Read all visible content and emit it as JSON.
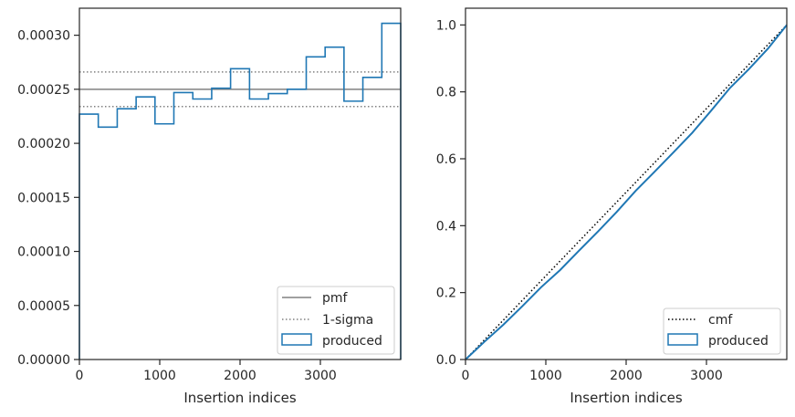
{
  "chart_data": [
    {
      "type": "line",
      "xlabel": "Insertion indices",
      "ylabel": "",
      "xlim": [
        0,
        4000
      ],
      "ylim": [
        0,
        0.000325
      ],
      "xticks": [
        0,
        1000,
        2000,
        3000
      ],
      "xtick_labels": [
        "0",
        "1000",
        "2000",
        "3000"
      ],
      "yticks": [
        0,
        5e-05,
        0.0001,
        0.00015,
        0.0002,
        0.00025,
        0.0003
      ],
      "ytick_labels": [
        "0.00000",
        "0.00005",
        "0.00010",
        "0.00015",
        "0.00020",
        "0.00025",
        "0.00030"
      ],
      "pmf": 0.00025,
      "sigma_lower": 0.000234,
      "sigma_upper": 0.000266,
      "histogram": {
        "bin_edges": [
          0,
          235,
          471,
          706,
          941,
          1176,
          1412,
          1647,
          1882,
          2118,
          2353,
          2588,
          2824,
          3059,
          3294,
          3529,
          3765,
          4000
        ],
        "values": [
          0.000227,
          0.000215,
          0.000232,
          0.000243,
          0.000218,
          0.000247,
          0.000241,
          0.000251,
          0.000269,
          0.000241,
          0.000246,
          0.00025,
          0.00028,
          0.000289,
          0.000239,
          0.000261,
          0.000311
        ]
      },
      "legend": {
        "position": "lower right",
        "entries": [
          {
            "label": "pmf",
            "color": "#808080",
            "style": "solid"
          },
          {
            "label": "1-sigma",
            "color": "#808080",
            "style": "dotted"
          },
          {
            "label": "produced",
            "color": "#1f77b4",
            "style": "step"
          }
        ]
      },
      "grid": false
    },
    {
      "type": "line",
      "xlabel": "Insertion indices",
      "ylabel": "",
      "xlim": [
        0,
        4000
      ],
      "ylim": [
        0,
        1.05
      ],
      "xticks": [
        0,
        1000,
        2000,
        3000
      ],
      "xtick_labels": [
        "0",
        "1000",
        "2000",
        "3000"
      ],
      "yticks": [
        0,
        0.2,
        0.4,
        0.6,
        0.8,
        1.0
      ],
      "ytick_labels": [
        "0.0",
        "0.2",
        "0.4",
        "0.6",
        "0.8",
        "1.0"
      ],
      "cmf": {
        "x": [
          0,
          4000
        ],
        "y": [
          0,
          1.0
        ]
      },
      "produced_cdf": {
        "x": [
          0,
          235,
          471,
          706,
          941,
          1176,
          1412,
          1647,
          1882,
          2118,
          2353,
          2588,
          2824,
          3059,
          3294,
          3529,
          3765,
          4000
        ],
        "y": [
          0,
          0.053,
          0.104,
          0.159,
          0.216,
          0.267,
          0.325,
          0.382,
          0.441,
          0.504,
          0.561,
          0.619,
          0.678,
          0.744,
          0.812,
          0.868,
          0.929,
          1.0
        ]
      },
      "legend": {
        "position": "lower right",
        "entries": [
          {
            "label": "cmf",
            "color": "#000000",
            "style": "dotted"
          },
          {
            "label": "produced",
            "color": "#1f77b4",
            "style": "step"
          }
        ]
      },
      "grid": false
    }
  ],
  "colors": {
    "produced": "#1f77b4",
    "reference": "#808080",
    "cmf": "#000000",
    "axes": "#262626"
  }
}
